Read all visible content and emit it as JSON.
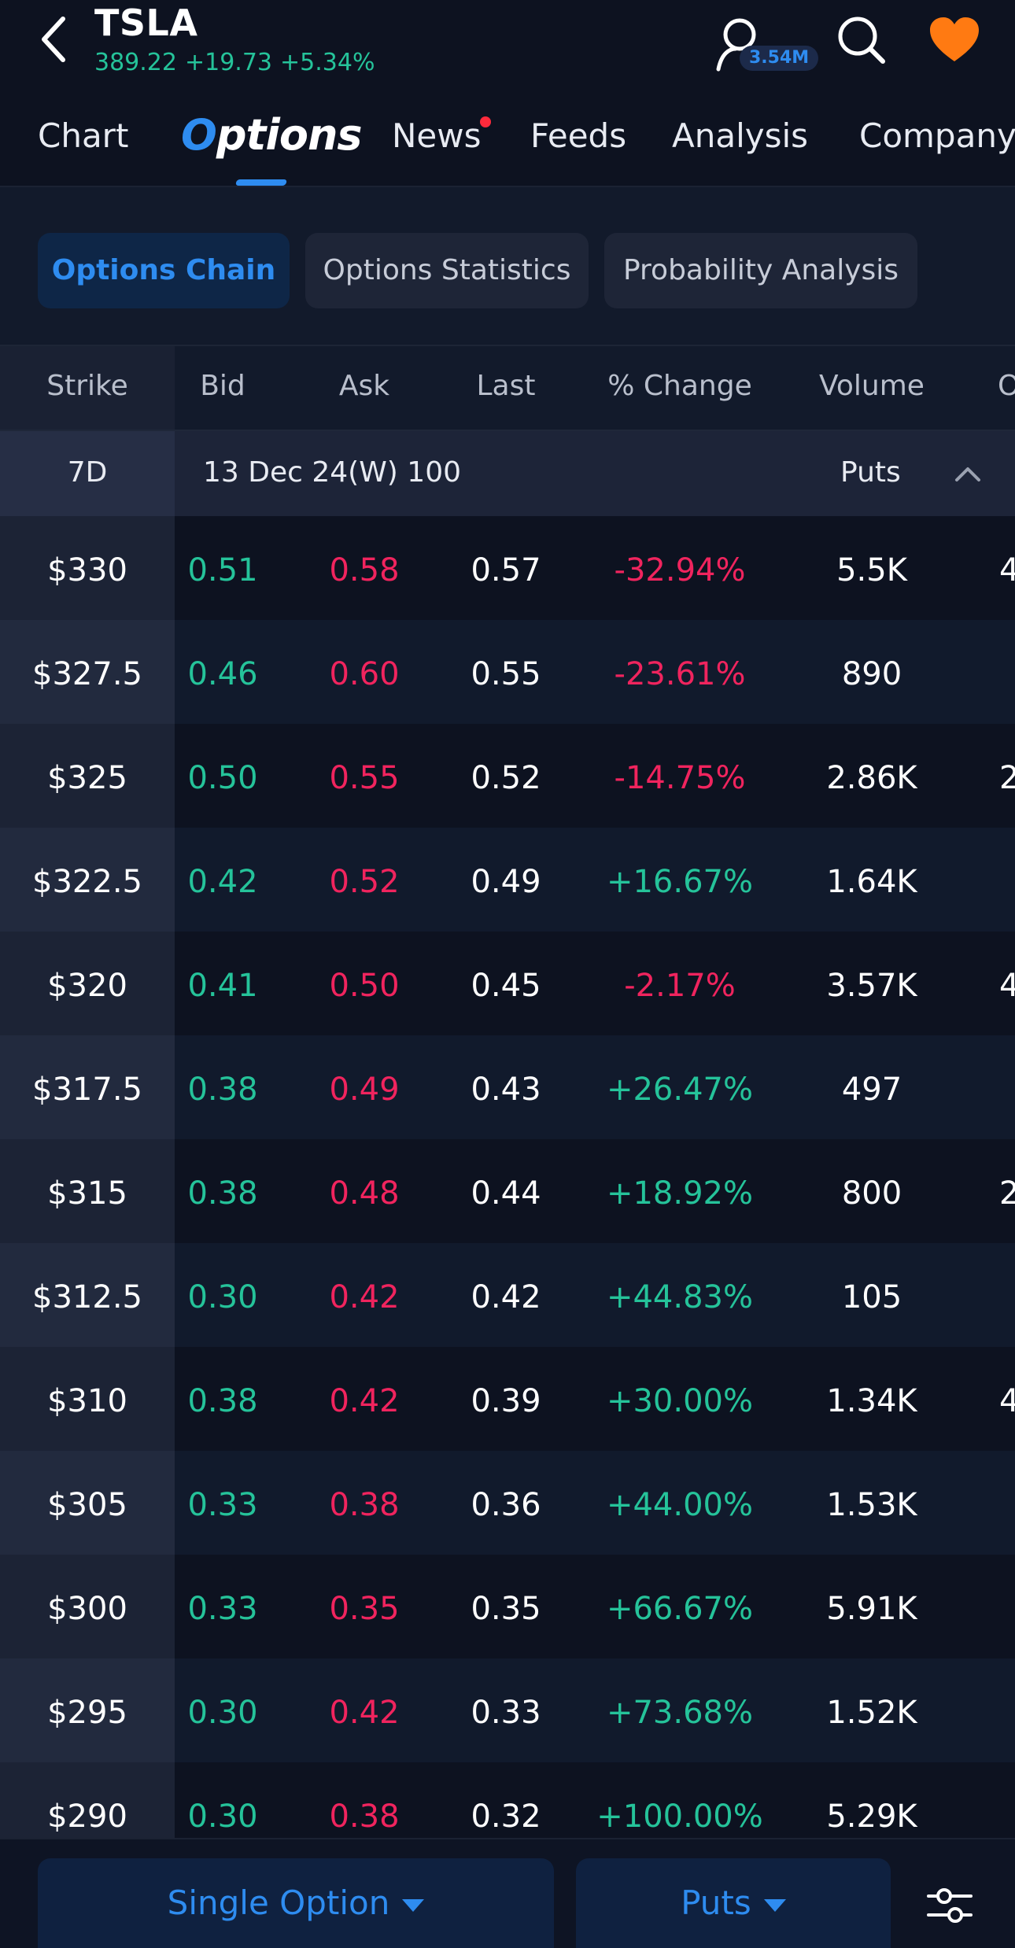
{
  "header": {
    "symbol": "TSLA",
    "price": "389.22",
    "change": "+19.73",
    "change_pct": "+5.34%",
    "watchers": "3.54M"
  },
  "tabs": {
    "chart": "Chart",
    "options": "Options",
    "news": "News",
    "feeds": "Feeds",
    "analysis": "Analysis",
    "company": "Company"
  },
  "subtabs": {
    "chain": "Options Chain",
    "statistics": "Options Statistics",
    "probability": "Probability Analysis"
  },
  "columns": {
    "strike": "Strike",
    "bid": "Bid",
    "ask": "Ask",
    "last": "Last",
    "change": "% Change",
    "volume": "Volume",
    "next": "O"
  },
  "expiry": {
    "days": "7D",
    "label": "13 Dec 24(W) 100",
    "type": "Puts"
  },
  "rows": [
    {
      "strike": "$330",
      "bid": "0.51",
      "ask": "0.58",
      "last": "0.57",
      "change": "-32.94%",
      "volume": "5.5K",
      "extra": "4"
    },
    {
      "strike": "$327.5",
      "bid": "0.46",
      "ask": "0.60",
      "last": "0.55",
      "change": "-23.61%",
      "volume": "890",
      "extra": ""
    },
    {
      "strike": "$325",
      "bid": "0.50",
      "ask": "0.55",
      "last": "0.52",
      "change": "-14.75%",
      "volume": "2.86K",
      "extra": "2"
    },
    {
      "strike": "$322.5",
      "bid": "0.42",
      "ask": "0.52",
      "last": "0.49",
      "change": "+16.67%",
      "volume": "1.64K",
      "extra": ""
    },
    {
      "strike": "$320",
      "bid": "0.41",
      "ask": "0.50",
      "last": "0.45",
      "change": "-2.17%",
      "volume": "3.57K",
      "extra": "4"
    },
    {
      "strike": "$317.5",
      "bid": "0.38",
      "ask": "0.49",
      "last": "0.43",
      "change": "+26.47%",
      "volume": "497",
      "extra": ""
    },
    {
      "strike": "$315",
      "bid": "0.38",
      "ask": "0.48",
      "last": "0.44",
      "change": "+18.92%",
      "volume": "800",
      "extra": "2"
    },
    {
      "strike": "$312.5",
      "bid": "0.30",
      "ask": "0.42",
      "last": "0.42",
      "change": "+44.83%",
      "volume": "105",
      "extra": ""
    },
    {
      "strike": "$310",
      "bid": "0.38",
      "ask": "0.42",
      "last": "0.39",
      "change": "+30.00%",
      "volume": "1.34K",
      "extra": "4"
    },
    {
      "strike": "$305",
      "bid": "0.33",
      "ask": "0.38",
      "last": "0.36",
      "change": "+44.00%",
      "volume": "1.53K",
      "extra": ""
    },
    {
      "strike": "$300",
      "bid": "0.33",
      "ask": "0.35",
      "last": "0.35",
      "change": "+66.67%",
      "volume": "5.91K",
      "extra": ""
    },
    {
      "strike": "$295",
      "bid": "0.30",
      "ask": "0.42",
      "last": "0.33",
      "change": "+73.68%",
      "volume": "1.52K",
      "extra": ""
    },
    {
      "strike": "$290",
      "bid": "0.30",
      "ask": "0.38",
      "last": "0.32",
      "change": "+100.00%",
      "volume": "5.29K",
      "extra": ""
    }
  ],
  "bottom": {
    "strategy": "Single Option",
    "type": "Puts"
  },
  "icons": {
    "back": "chevron-left-icon",
    "watchers": "user-icon",
    "search": "search-icon",
    "favorite": "heart-icon",
    "collapse": "chevron-up-icon",
    "settings": "sliders-icon"
  },
  "colors": {
    "positive": "#25c39a",
    "negative": "#f0245e",
    "accent": "#2e8cf0",
    "favorite": "#ff7a12"
  }
}
